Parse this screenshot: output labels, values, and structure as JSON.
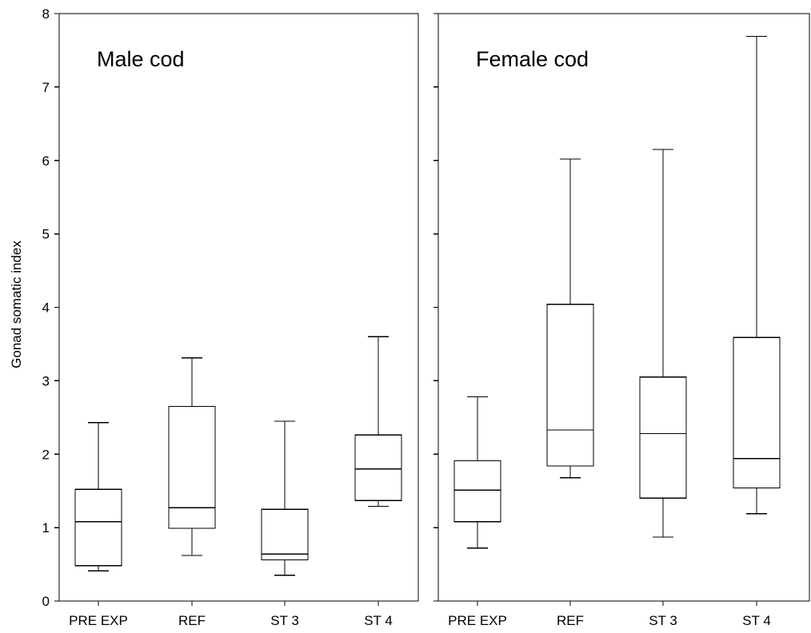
{
  "chart_data": {
    "type": "boxplot",
    "ylabel": "Gonad somatic index",
    "ylim": [
      0,
      8
    ],
    "yticks": [
      0,
      1,
      2,
      3,
      4,
      5,
      6,
      7,
      8
    ],
    "shared_y_axis": true,
    "grid": false,
    "panels": [
      {
        "title": "Male cod",
        "categories": [
          "PRE EXP",
          "REF",
          "ST 3",
          "ST 4"
        ],
        "boxes": [
          {
            "category": "PRE EXP",
            "whisker_low": 0.41,
            "q1": 0.48,
            "median": 1.08,
            "q3": 1.52,
            "whisker_high": 2.43
          },
          {
            "category": "REF",
            "whisker_low": 0.62,
            "q1": 0.99,
            "median": 1.27,
            "q3": 2.65,
            "whisker_high": 3.31
          },
          {
            "category": "ST 3",
            "whisker_low": 0.35,
            "q1": 0.56,
            "median": 0.64,
            "q3": 1.25,
            "whisker_high": 2.45
          },
          {
            "category": "ST 4",
            "whisker_low": 1.29,
            "q1": 1.37,
            "median": 1.8,
            "q3": 2.26,
            "whisker_high": 3.6
          }
        ]
      },
      {
        "title": "Female cod",
        "categories": [
          "PRE EXP",
          "REF",
          "ST 3",
          "ST 4"
        ],
        "boxes": [
          {
            "category": "PRE EXP",
            "whisker_low": 0.72,
            "q1": 1.08,
            "median": 1.51,
            "q3": 1.91,
            "whisker_high": 2.78
          },
          {
            "category": "REF",
            "whisker_low": 1.68,
            "q1": 1.84,
            "median": 2.33,
            "q3": 4.04,
            "whisker_high": 6.02
          },
          {
            "category": "ST 3",
            "whisker_low": 0.87,
            "q1": 1.4,
            "median": 2.28,
            "q3": 3.05,
            "whisker_high": 6.15
          },
          {
            "category": "ST 4",
            "whisker_low": 1.19,
            "q1": 1.54,
            "median": 1.94,
            "q3": 3.59,
            "whisker_high": 7.69
          }
        ]
      }
    ]
  }
}
